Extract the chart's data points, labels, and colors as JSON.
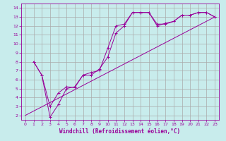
{
  "xlabel": "Windchill (Refroidissement éolien,°C)",
  "bg_color": "#c8ecec",
  "line_color": "#990099",
  "grid_color": "#aaaaaa",
  "xlim": [
    -0.5,
    23.5
  ],
  "ylim": [
    1.5,
    14.5
  ],
  "xticks": [
    0,
    1,
    2,
    3,
    4,
    5,
    6,
    7,
    8,
    9,
    10,
    11,
    12,
    13,
    14,
    15,
    16,
    17,
    18,
    19,
    20,
    21,
    22,
    23
  ],
  "yticks": [
    2,
    3,
    4,
    5,
    6,
    7,
    8,
    9,
    10,
    11,
    12,
    13,
    14
  ],
  "series1_x": [
    1,
    2,
    3,
    4,
    5,
    6,
    7,
    8,
    9,
    10,
    11,
    12,
    13,
    14,
    15,
    16,
    17,
    18,
    19,
    20,
    21,
    22,
    23
  ],
  "series1_y": [
    8.0,
    6.5,
    3.0,
    4.5,
    5.2,
    5.1,
    6.5,
    6.8,
    7.0,
    9.5,
    12.0,
    12.2,
    13.5,
    13.5,
    13.5,
    12.2,
    12.2,
    12.5,
    13.2,
    13.2,
    13.5,
    13.5,
    13.0
  ],
  "series2_x": [
    1,
    2,
    3,
    4,
    5,
    6,
    7,
    8,
    9,
    10,
    11,
    12,
    13,
    14,
    15,
    16,
    17,
    18,
    19,
    20,
    21,
    22,
    23
  ],
  "series2_y": [
    8.0,
    6.5,
    1.8,
    3.2,
    5.0,
    5.2,
    6.5,
    6.5,
    7.2,
    8.5,
    11.2,
    12.0,
    13.5,
    13.5,
    13.5,
    12.0,
    12.3,
    12.5,
    13.2,
    13.2,
    13.5,
    13.5,
    13.0
  ],
  "series3_x": [
    0,
    23
  ],
  "series3_y": [
    2.0,
    13.0
  ],
  "xlabel_fontsize": 5.5,
  "tick_fontsize": 4.5
}
